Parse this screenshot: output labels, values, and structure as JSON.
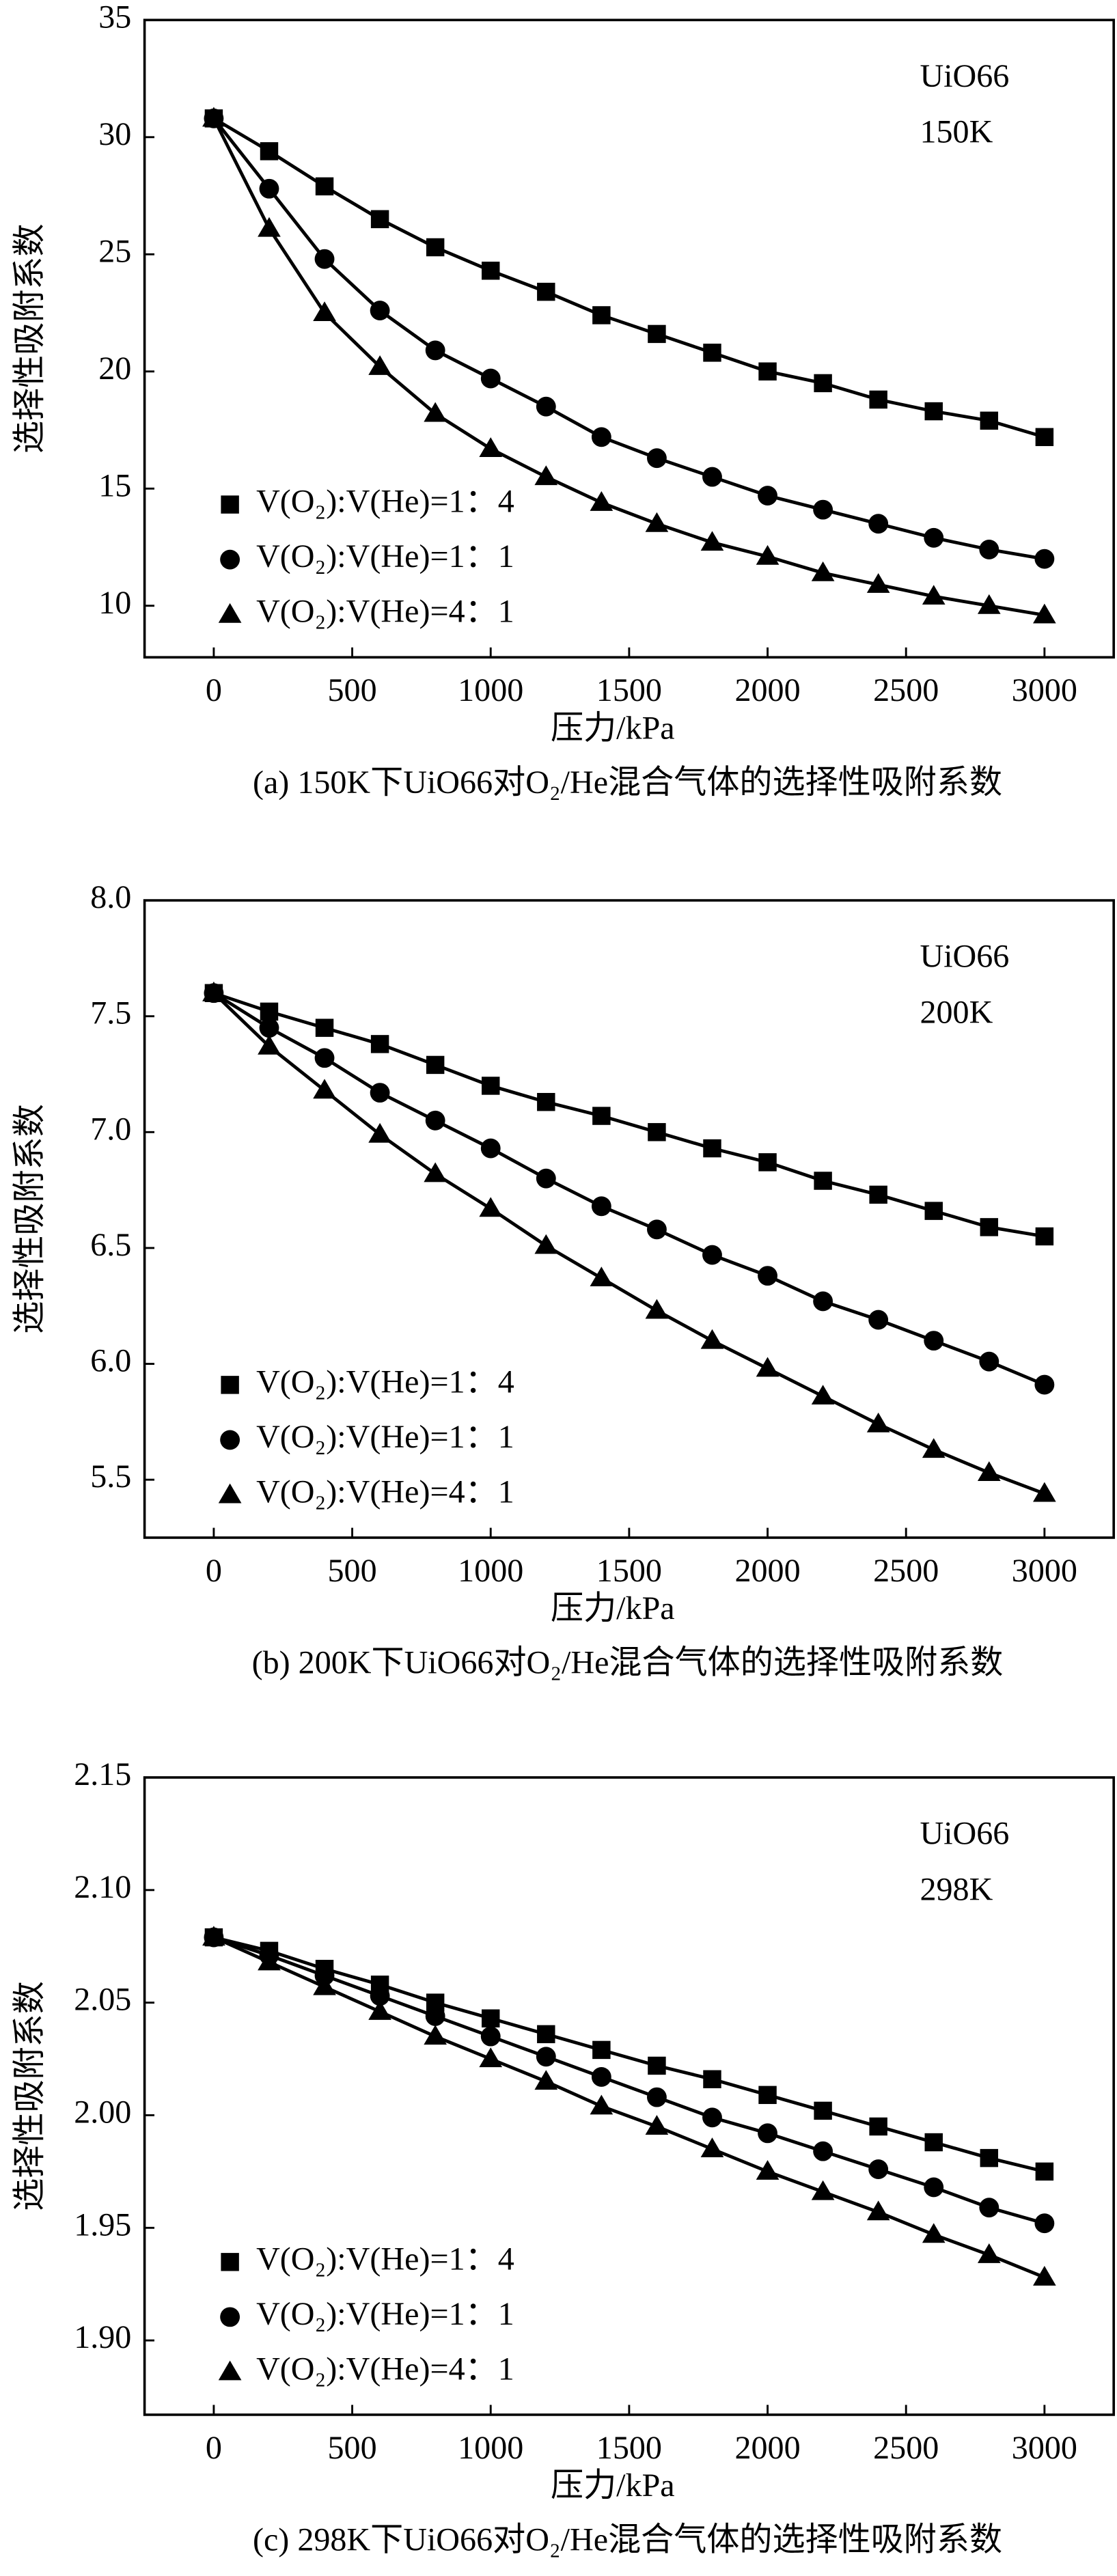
{
  "chart_data": [
    {
      "type": "line",
      "ylabel": "选择性吸附系数",
      "xlabel": "压力/kPa",
      "annotations": [
        "UiO66",
        "150K"
      ],
      "caption": "(a) 150K下UiO66对O₂/He混合气体的选择性吸附系数",
      "x": [
        0,
        200,
        400,
        600,
        800,
        1000,
        1200,
        1400,
        1600,
        1800,
        2000,
        2200,
        2400,
        2600,
        2800,
        3000
      ],
      "xlim": [
        -250,
        3250
      ],
      "xticks": [
        0,
        500,
        1000,
        1500,
        2000,
        2500,
        3000
      ],
      "ylim": [
        7.8,
        35
      ],
      "yticks": [
        10,
        15,
        20,
        25,
        30,
        35
      ],
      "series": [
        {
          "name": "V(O₂):V(He)=1：4",
          "color": "#000000",
          "marker": "square",
          "values": [
            30.8,
            29.4,
            27.9,
            26.5,
            25.3,
            24.3,
            23.4,
            22.4,
            21.6,
            20.8,
            20.0,
            19.5,
            18.8,
            18.3,
            17.9,
            17.2
          ]
        },
        {
          "name": "V(O₂):V(He)=1：1",
          "color": "#000000",
          "marker": "circle",
          "values": [
            30.8,
            27.8,
            24.8,
            22.6,
            20.9,
            19.7,
            18.5,
            17.2,
            16.3,
            15.5,
            14.7,
            14.1,
            13.5,
            12.9,
            12.4,
            12.0
          ]
        },
        {
          "name": "V(O₂):V(He)=4：1",
          "color": "#000000",
          "marker": "triangle",
          "values": [
            30.8,
            26.1,
            22.5,
            20.2,
            18.2,
            16.7,
            15.5,
            14.4,
            13.5,
            12.7,
            12.1,
            11.4,
            10.9,
            10.4,
            10.0,
            9.6
          ]
        }
      ]
    },
    {
      "type": "line",
      "ylabel": "选择性吸附系数",
      "xlabel": "压力/kPa",
      "annotations": [
        "UiO66",
        "200K"
      ],
      "caption": "(b) 200K下UiO66对O₂/He混合气体的选择性吸附系数",
      "x": [
        0,
        200,
        400,
        600,
        800,
        1000,
        1200,
        1400,
        1600,
        1800,
        2000,
        2200,
        2400,
        2600,
        2800,
        3000
      ],
      "xlim": [
        -250,
        3250
      ],
      "xticks": [
        0,
        500,
        1000,
        1500,
        2000,
        2500,
        3000
      ],
      "ylim": [
        5.25,
        8.0
      ],
      "yticks": [
        5.5,
        {
          "value": 6,
          "label": "6.0"
        },
        6.5,
        {
          "value": 7,
          "label": "7.0"
        },
        7.5,
        {
          "value": 8,
          "label": "8.0"
        }
      ],
      "series": [
        {
          "name": "V(O₂):V(He)=1：4",
          "color": "#000000",
          "marker": "square",
          "values": [
            7.6,
            7.52,
            7.45,
            7.38,
            7.29,
            7.2,
            7.13,
            7.07,
            7.0,
            6.93,
            6.87,
            6.79,
            6.73,
            6.66,
            6.59,
            6.55
          ]
        },
        {
          "name": "V(O₂):V(He)=1：1",
          "color": "#000000",
          "marker": "circle",
          "values": [
            7.6,
            7.45,
            7.32,
            7.17,
            7.05,
            6.93,
            6.8,
            6.68,
            6.58,
            6.47,
            6.38,
            6.27,
            6.19,
            6.1,
            6.01,
            5.91
          ]
        },
        {
          "name": "V(O₂):V(He)=4：1",
          "color": "#000000",
          "marker": "triangle",
          "values": [
            7.6,
            7.37,
            7.18,
            6.99,
            6.82,
            6.67,
            6.51,
            6.37,
            6.23,
            6.1,
            5.98,
            5.86,
            5.74,
            5.63,
            5.53,
            5.44
          ]
        }
      ]
    },
    {
      "type": "line",
      "ylabel": "选择性吸附系数",
      "xlabel": "压力/kPa",
      "annotations": [
        "UiO66",
        "298K"
      ],
      "caption": "(c) 298K下UiO66对O₂/He混合气体的选择性吸附系数",
      "x": [
        0,
        200,
        400,
        600,
        800,
        1000,
        1200,
        1400,
        1600,
        1800,
        2000,
        2200,
        2400,
        2600,
        2800,
        3000
      ],
      "xlim": [
        -250,
        3250
      ],
      "xticks": [
        0,
        500,
        1000,
        1500,
        2000,
        2500,
        3000
      ],
      "ylim": [
        1.867,
        2.15
      ],
      "yticks": [
        {
          "value": 1.9,
          "label": "1.90"
        },
        1.95,
        {
          "value": 2,
          "label": "2.00"
        },
        2.05,
        {
          "value": 2.1,
          "label": "2.10"
        },
        2.15
      ],
      "series": [
        {
          "name": "V(O₂):V(He)=1：4",
          "color": "#000000",
          "marker": "square",
          "values": [
            2.079,
            2.073,
            2.065,
            2.058,
            2.05,
            2.043,
            2.036,
            2.029,
            2.022,
            2.016,
            2.009,
            2.002,
            1.995,
            1.988,
            1.981,
            1.975
          ]
        },
        {
          "name": "V(O₂):V(He)=1：1",
          "color": "#000000",
          "marker": "circle",
          "values": [
            2.079,
            2.071,
            2.062,
            2.053,
            2.044,
            2.035,
            2.026,
            2.017,
            2.008,
            1.999,
            1.992,
            1.984,
            1.976,
            1.968,
            1.959,
            1.952
          ]
        },
        {
          "name": "V(O₂):V(He)=4：1",
          "color": "#000000",
          "marker": "triangle",
          "values": [
            2.079,
            2.068,
            2.057,
            2.046,
            2.035,
            2.025,
            2.015,
            2.004,
            1.995,
            1.985,
            1.975,
            1.966,
            1.957,
            1.947,
            1.938,
            1.928
          ]
        }
      ]
    }
  ]
}
